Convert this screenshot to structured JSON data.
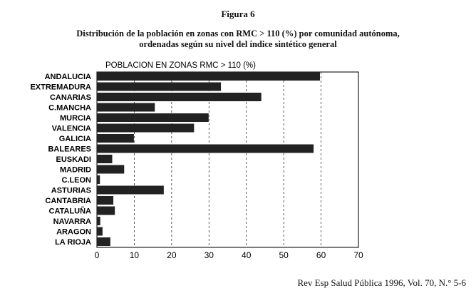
{
  "figure_label": "Figura 6",
  "caption_line1": "Distribución de la población en zonas con RMC > 110 (%) por comunidad autónoma,",
  "caption_line2": "ordenadas según su nivel del índice sintético general",
  "source": "Rev Esp Salud Pública 1996, Vol. 70, N.° 5-6",
  "chart_data": {
    "type": "bar",
    "orientation": "horizontal",
    "title": "POBLACION EN ZONAS RMC > 110 (%)",
    "xlabel": "",
    "ylabel": "",
    "xlim": [
      0,
      70
    ],
    "xticks": [
      0,
      10,
      20,
      30,
      40,
      50,
      60,
      70
    ],
    "grid": "vertical dashed",
    "bar_color": "#222222",
    "categories": [
      "ANDALUCIA",
      "EXTREMADURA",
      "CANARIAS",
      "C.MANCHA",
      "MURCIA",
      "VALENCIA",
      "GALICIA",
      "BALEARES",
      "EUSKADI",
      "MADRID",
      "C.LEON",
      "ASTURIAS",
      "CANTABRIA",
      "CATALUÑA",
      "NAVARRA",
      "ARAGON",
      "LA RIOJA"
    ],
    "values": [
      59.7,
      33.2,
      44.0,
      15.5,
      29.9,
      26.0,
      9.9,
      58.0,
      4.1,
      7.3,
      0.8,
      17.9,
      4.4,
      4.8,
      0.9,
      1.5,
      3.6
    ]
  }
}
